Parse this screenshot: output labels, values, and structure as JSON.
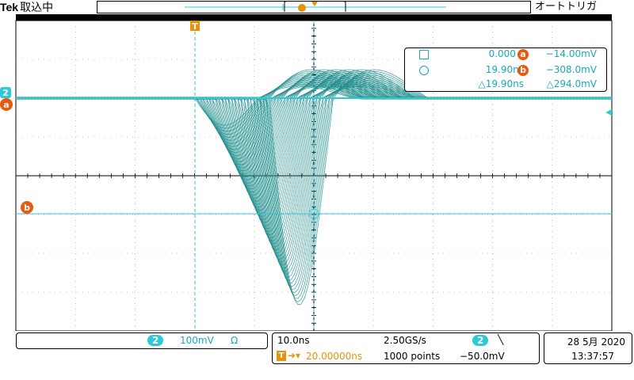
{
  "header": {
    "brand": "Tek",
    "acq_state": "取込中",
    "trigger_mode": "オートトリガ"
  },
  "colors": {
    "trace": "#1f8f8c",
    "channel": "#2ec8d8",
    "marker": "#e85a10",
    "trigger": "#e8920a"
  },
  "markers": {
    "ch_label": "2",
    "cursor_a": "a",
    "cursor_b": "b",
    "trigger_t": "T"
  },
  "cursor_readout": {
    "t_a": "0.000 s",
    "t_b": "19.90ns",
    "dt": "△19.90ns",
    "v_a": "−14.00mV",
    "v_b": "−308.0mV",
    "dv": "△294.0mV"
  },
  "channel_panel": {
    "channel": "2",
    "scale": "100mV",
    "termination": "Ω"
  },
  "timebase_panel": {
    "time_div": "10.0ns",
    "sample_rate": "2.50GS/s",
    "trigger_channel": "2",
    "trigger_slope": "╲",
    "trigger_delay": "20.00000ns",
    "record_length": "1000 points",
    "trigger_level": "−50.0mV"
  },
  "datetime": {
    "date": "28 5月 2020",
    "time": "13:37:57"
  }
}
